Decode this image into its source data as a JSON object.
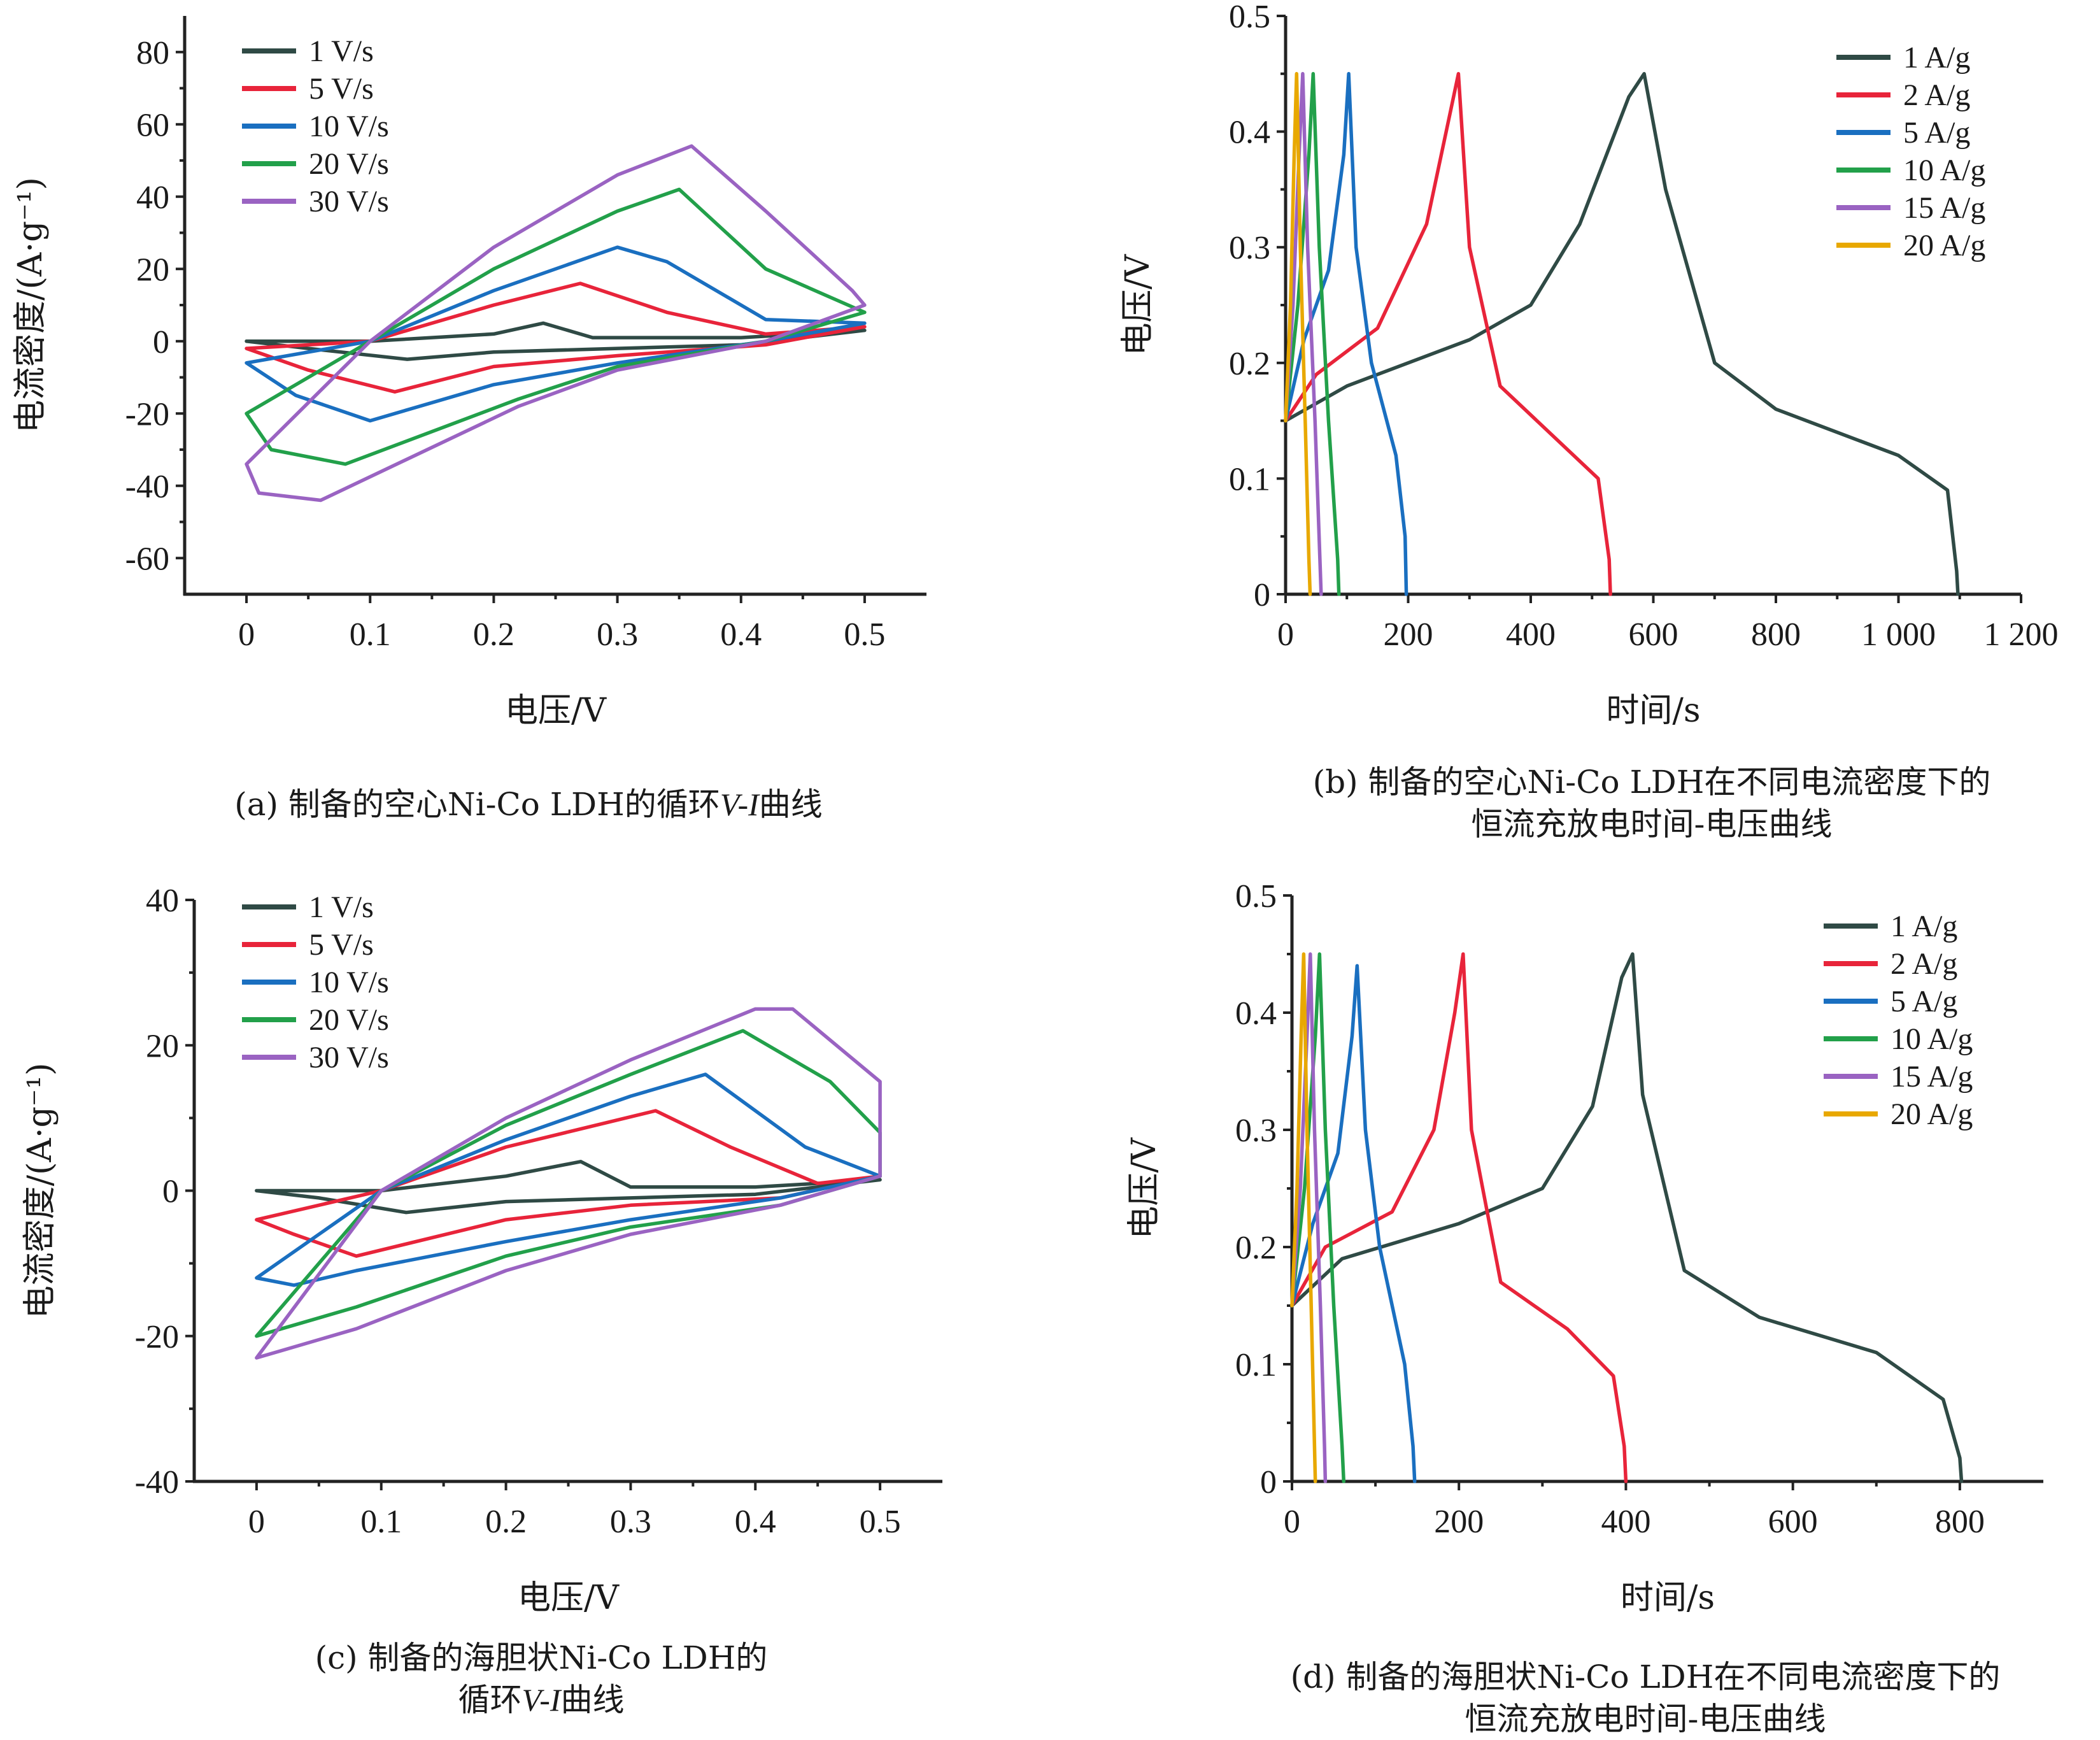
{
  "colors": {
    "c1": "#2f4a45",
    "c2": "#e8243a",
    "c3": "#1a6fc0",
    "c4": "#22a04a",
    "c5": "#9a63c2",
    "c6": "#e8a800"
  },
  "chart_data": [
    {
      "id": "a",
      "type": "line",
      "xlabel": "电压/V",
      "ylabel": "电流密度/(A·g⁻¹)",
      "xlim": [
        -0.05,
        0.55
      ],
      "ylim": [
        -70,
        90
      ],
      "xticks": [
        0,
        0.1,
        0.2,
        0.3,
        0.4,
        0.5
      ],
      "xtick_labels": [
        "0",
        "0.1",
        "0.2",
        "0.3",
        "0.4",
        "0.5"
      ],
      "yticks": [
        -60,
        -40,
        -20,
        0,
        20,
        40,
        60,
        80
      ],
      "ytick_labels": [
        "-60",
        "-40",
        "-20",
        "0",
        "20",
        "40",
        "60",
        "80"
      ],
      "legend_position": "top-left",
      "caption_pre": "(a)  制备的空心Ni-Co LDH的循环",
      "caption_italic": "V-I",
      "caption_post": "曲线",
      "series": [
        {
          "name": "1 V/s",
          "color": "c1",
          "x": [
            0,
            0.1,
            0.2,
            0.24,
            0.28,
            0.4,
            0.5,
            0.5,
            0.4,
            0.3,
            0.2,
            0.13,
            0.05,
            0
          ],
          "y": [
            0,
            0,
            2,
            5,
            1,
            1,
            3,
            3,
            -1,
            -2,
            -3,
            -5,
            -2,
            0
          ]
        },
        {
          "name": "5 V/s",
          "color": "c2",
          "x": [
            0,
            0.1,
            0.2,
            0.27,
            0.34,
            0.42,
            0.5,
            0.5,
            0.42,
            0.3,
            0.2,
            0.12,
            0.05,
            0
          ],
          "y": [
            -2,
            0,
            10,
            16,
            8,
            2,
            4,
            4,
            -1,
            -4,
            -7,
            -14,
            -8,
            -2
          ]
        },
        {
          "name": "10 V/s",
          "color": "c3",
          "x": [
            0,
            0.1,
            0.2,
            0.3,
            0.34,
            0.42,
            0.5,
            0.5,
            0.42,
            0.3,
            0.2,
            0.1,
            0.04,
            0
          ],
          "y": [
            -6,
            0,
            14,
            26,
            22,
            6,
            5,
            5,
            0,
            -6,
            -12,
            -22,
            -15,
            -6
          ]
        },
        {
          "name": "20 V/s",
          "color": "c4",
          "x": [
            0,
            0.1,
            0.2,
            0.3,
            0.35,
            0.42,
            0.5,
            0.5,
            0.42,
            0.3,
            0.22,
            0.08,
            0.02,
            0
          ],
          "y": [
            -20,
            0,
            20,
            36,
            42,
            20,
            8,
            8,
            0,
            -7,
            -16,
            -34,
            -30,
            -20
          ]
        },
        {
          "name": "30 V/s",
          "color": "c5",
          "x": [
            0,
            0.1,
            0.2,
            0.3,
            0.36,
            0.42,
            0.49,
            0.5,
            0.42,
            0.3,
            0.22,
            0.06,
            0.01,
            0
          ],
          "y": [
            -34,
            0,
            26,
            46,
            54,
            36,
            14,
            10,
            0,
            -8,
            -18,
            -44,
            -42,
            -34
          ]
        }
      ]
    },
    {
      "id": "b",
      "type": "line",
      "xlabel": "时间/s",
      "ylabel": "电压/V",
      "xlim": [
        0,
        1200
      ],
      "ylim": [
        0,
        0.5
      ],
      "xticks": [
        0,
        200,
        400,
        600,
        800,
        1000,
        1200
      ],
      "xtick_labels": [
        "0",
        "200",
        "400",
        "600",
        "800",
        "1 000",
        "1 200"
      ],
      "yticks": [
        0,
        0.1,
        0.2,
        0.3,
        0.4,
        0.5
      ],
      "ytick_labels": [
        "0",
        "0.1",
        "0.2",
        "0.3",
        "0.4",
        "0.5"
      ],
      "legend_position": "top-right",
      "caption_line1": "(b)  制备的空心Ni-Co LDH在不同电流密度下的",
      "caption_line2": "恒流充放电时间-电压曲线",
      "series": [
        {
          "name": "1 A/g",
          "color": "c1",
          "x": [
            0,
            100,
            300,
            400,
            480,
            560,
            585,
            620,
            700,
            800,
            1000,
            1080,
            1095,
            1097
          ],
          "y": [
            0.15,
            0.18,
            0.22,
            0.25,
            0.32,
            0.43,
            0.45,
            0.35,
            0.2,
            0.16,
            0.12,
            0.09,
            0.02,
            0
          ]
        },
        {
          "name": "2 A/g",
          "color": "c2",
          "x": [
            0,
            50,
            150,
            230,
            270,
            282,
            300,
            350,
            450,
            510,
            528,
            530
          ],
          "y": [
            0.15,
            0.19,
            0.23,
            0.32,
            0.42,
            0.45,
            0.3,
            0.18,
            0.13,
            0.1,
            0.03,
            0
          ]
        },
        {
          "name": "5 A/g",
          "color": "c3",
          "x": [
            0,
            30,
            70,
            95,
            103,
            115,
            140,
            180,
            195,
            197
          ],
          "y": [
            0.15,
            0.22,
            0.28,
            0.38,
            0.45,
            0.3,
            0.2,
            0.12,
            0.05,
            0
          ]
        },
        {
          "name": "10 A/g",
          "color": "c4",
          "x": [
            0,
            20,
            38,
            45,
            55,
            70,
            85,
            87
          ],
          "y": [
            0.15,
            0.25,
            0.38,
            0.45,
            0.3,
            0.15,
            0.03,
            0
          ]
        },
        {
          "name": "15 A/g",
          "color": "c5",
          "x": [
            0,
            12,
            22,
            28,
            36,
            48,
            56,
            58
          ],
          "y": [
            0.15,
            0.25,
            0.38,
            0.45,
            0.3,
            0.15,
            0.03,
            0
          ]
        },
        {
          "name": "20 A/g",
          "color": "c6",
          "x": [
            0,
            8,
            14,
            18,
            24,
            32,
            38,
            40
          ],
          "y": [
            0.15,
            0.25,
            0.38,
            0.45,
            0.3,
            0.15,
            0.03,
            0
          ]
        }
      ]
    },
    {
      "id": "c",
      "type": "line",
      "xlabel": "电压/V",
      "ylabel": "电流密度/(A·g⁻¹)",
      "xlim": [
        -0.05,
        0.55
      ],
      "ylim": [
        -40,
        40
      ],
      "xticks": [
        0,
        0.1,
        0.2,
        0.3,
        0.4,
        0.5
      ],
      "xtick_labels": [
        "0",
        "0.1",
        "0.2",
        "0.3",
        "0.4",
        "0.5"
      ],
      "yticks": [
        -40,
        -20,
        0,
        20,
        40
      ],
      "ytick_labels": [
        "-40",
        "-20",
        "0",
        "20",
        "40"
      ],
      "legend_position": "top-left",
      "caption_line1": "(c)  制备的海胆状Ni-Co LDH的",
      "caption_pre": "循环",
      "caption_italic": "V-I",
      "caption_post": "曲线",
      "series": [
        {
          "name": "1 V/s",
          "color": "c1",
          "x": [
            0,
            0.1,
            0.2,
            0.26,
            0.3,
            0.4,
            0.5,
            0.5,
            0.4,
            0.3,
            0.2,
            0.12,
            0.05,
            0
          ],
          "y": [
            0,
            0,
            2,
            4,
            0.5,
            0.5,
            1.5,
            1.5,
            -0.5,
            -1,
            -1.5,
            -3,
            -1,
            0
          ]
        },
        {
          "name": "5 V/s",
          "color": "c2",
          "x": [
            0,
            0.1,
            0.2,
            0.32,
            0.38,
            0.45,
            0.5,
            0.5,
            0.42,
            0.3,
            0.2,
            0.08,
            0.03,
            0
          ],
          "y": [
            -4,
            0,
            6,
            11,
            6,
            1,
            2,
            2,
            -1,
            -2,
            -4,
            -9,
            -6,
            -4
          ]
        },
        {
          "name": "10 V/s",
          "color": "c3",
          "x": [
            0,
            0.1,
            0.2,
            0.3,
            0.36,
            0.44,
            0.5,
            0.5,
            0.42,
            0.3,
            0.2,
            0.08,
            0.03,
            0
          ],
          "y": [
            -12,
            0,
            7,
            13,
            16,
            6,
            2,
            2,
            -1,
            -4,
            -7,
            -11,
            -13,
            -12
          ]
        },
        {
          "name": "20 V/s",
          "color": "c4",
          "x": [
            0,
            0.1,
            0.2,
            0.3,
            0.39,
            0.46,
            0.5,
            0.5,
            0.42,
            0.3,
            0.2,
            0.08,
            0.02,
            0
          ],
          "y": [
            -20,
            0,
            9,
            16,
            22,
            15,
            8,
            2,
            -2,
            -5,
            -9,
            -16,
            -19,
            -20
          ]
        },
        {
          "name": "30 V/s",
          "color": "c5",
          "x": [
            0,
            0.1,
            0.2,
            0.3,
            0.4,
            0.43,
            0.5,
            0.5,
            0.42,
            0.3,
            0.2,
            0.08,
            0.02,
            0
          ],
          "y": [
            -23,
            0,
            10,
            18,
            25,
            25,
            15,
            2,
            -2,
            -6,
            -11,
            -19,
            -22,
            -23
          ]
        }
      ]
    },
    {
      "id": "d",
      "type": "line",
      "xlabel": "时间/s",
      "ylabel": "电压/V",
      "xlim": [
        0,
        900
      ],
      "ylim": [
        0,
        0.5
      ],
      "xticks": [
        0,
        200,
        400,
        600,
        800
      ],
      "xtick_labels": [
        "0",
        "200",
        "400",
        "600",
        "800"
      ],
      "yticks": [
        0,
        0.1,
        0.2,
        0.3,
        0.4,
        0.5
      ],
      "ytick_labels": [
        "0",
        "0.1",
        "0.2",
        "0.3",
        "0.4",
        "0.5"
      ],
      "legend_position": "top-right",
      "caption_line1": "(d)  制备的海胆状Ni-Co LDH在不同电流密度下的",
      "caption_line2": "恒流充放电时间-电压曲线",
      "series": [
        {
          "name": "1 A/g",
          "color": "c1",
          "x": [
            0,
            60,
            200,
            300,
            360,
            395,
            408,
            420,
            470,
            560,
            700,
            780,
            800,
            802
          ],
          "y": [
            0.15,
            0.19,
            0.22,
            0.25,
            0.32,
            0.43,
            0.45,
            0.33,
            0.18,
            0.14,
            0.11,
            0.07,
            0.02,
            0
          ]
        },
        {
          "name": "2 A/g",
          "color": "c2",
          "x": [
            0,
            40,
            120,
            170,
            195,
            205,
            215,
            250,
            330,
            385,
            398,
            400
          ],
          "y": [
            0.15,
            0.2,
            0.23,
            0.3,
            0.4,
            0.45,
            0.3,
            0.17,
            0.13,
            0.09,
            0.03,
            0
          ]
        },
        {
          "name": "5 A/g",
          "color": "c3",
          "x": [
            0,
            25,
            55,
            72,
            78,
            88,
            105,
            135,
            145,
            147
          ],
          "y": [
            0.15,
            0.22,
            0.28,
            0.38,
            0.44,
            0.3,
            0.2,
            0.1,
            0.03,
            0
          ]
        },
        {
          "name": "10 A/g",
          "color": "c4",
          "x": [
            0,
            15,
            28,
            33,
            40,
            50,
            60,
            62
          ],
          "y": [
            0.15,
            0.25,
            0.38,
            0.45,
            0.3,
            0.15,
            0.03,
            0
          ]
        },
        {
          "name": "15 A/g",
          "color": "c5",
          "x": [
            0,
            10,
            18,
            22,
            27,
            34,
            39,
            40
          ],
          "y": [
            0.15,
            0.25,
            0.38,
            0.45,
            0.3,
            0.15,
            0.03,
            0
          ]
        },
        {
          "name": "20 A/g",
          "color": "c6",
          "x": [
            0,
            6,
            11,
            14,
            18,
            23,
            27,
            28
          ],
          "y": [
            0.15,
            0.25,
            0.38,
            0.45,
            0.3,
            0.15,
            0.03,
            0
          ]
        }
      ]
    }
  ]
}
